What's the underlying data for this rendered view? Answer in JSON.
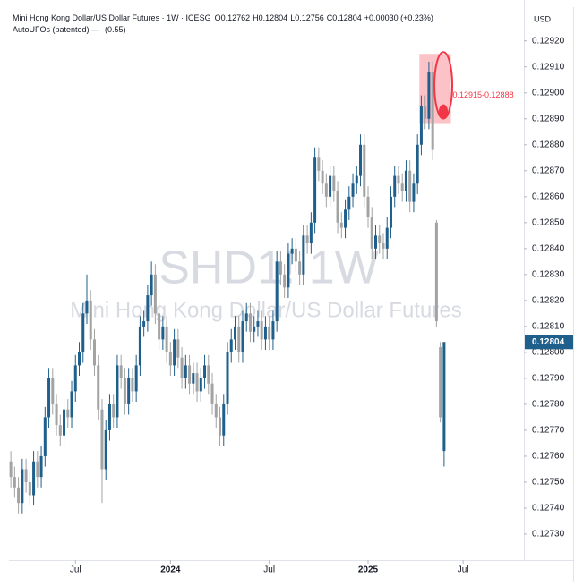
{
  "header": {
    "symbol": "Mini Hong Kong Dollar/US Dollar Futures · 1W · ICESG",
    "o_label": "O",
    "o": "0.12762",
    "h_label": "H",
    "h": "0.12804",
    "l_label": "L",
    "l": "0.12756",
    "c_label": "C",
    "c": "0.12804",
    "change": "+0.00030 (+0.23%)",
    "indicator": "AutoUFOs (patented) —",
    "indicator_value": "(0.55)"
  },
  "watermark": {
    "ticker": "SHD1! 1W",
    "name": "Mini Hong Kong Dollar/US Dollar Futures"
  },
  "chart_data": {
    "type": "candlestick",
    "currency": "USD",
    "up_color": "#1f5f8b",
    "down_color": "#a3a3a3",
    "ylim": [
      0.1272,
      0.12933
    ],
    "xlim": [
      -0.5,
      135
    ],
    "yticks": [
      {
        "value": 0.1292,
        "label": "0.12920"
      },
      {
        "value": 0.1291,
        "label": "0.12910"
      },
      {
        "value": 0.129,
        "label": "0.12900"
      },
      {
        "value": 0.1289,
        "label": "0.12890"
      },
      {
        "value": 0.1288,
        "label": "0.12880"
      },
      {
        "value": 0.1287,
        "label": "0.12870"
      },
      {
        "value": 0.1286,
        "label": "0.12860"
      },
      {
        "value": 0.1285,
        "label": "0.12850"
      },
      {
        "value": 0.1284,
        "label": "0.12840"
      },
      {
        "value": 0.1283,
        "label": "0.12830"
      },
      {
        "value": 0.1282,
        "label": "0.12820"
      },
      {
        "value": 0.1281,
        "label": "0.12810"
      },
      {
        "value": 0.128,
        "label": "0.12800"
      },
      {
        "value": 0.1279,
        "label": "0.12790"
      },
      {
        "value": 0.1278,
        "label": "0.12780"
      },
      {
        "value": 0.1277,
        "label": "0.12770"
      },
      {
        "value": 0.1276,
        "label": "0.12760"
      },
      {
        "value": 0.1275,
        "label": "0.12750"
      },
      {
        "value": 0.1274,
        "label": "0.12740"
      },
      {
        "value": 0.1273,
        "label": "0.12730"
      }
    ],
    "xticks": [
      {
        "value": 17,
        "label": "Jul"
      },
      {
        "value": 42,
        "label": "2024"
      },
      {
        "value": 68,
        "label": "Jul"
      },
      {
        "value": 94,
        "label": "2025"
      },
      {
        "value": 119,
        "label": "Jul"
      }
    ],
    "last_price": {
      "value": 0.12804,
      "label": "0.12804"
    },
    "zone": {
      "high": 0.12915,
      "low": 0.12888,
      "label": "0.12915-0.12888",
      "color": "#f23645"
    },
    "open": [
      0.12758,
      0.12752,
      0.12748,
      0.12742,
      0.12755,
      0.1275,
      0.12745,
      0.12758,
      0.12752,
      0.1276,
      0.12775,
      0.1279,
      0.1278,
      0.12772,
      0.12768,
      0.12778,
      0.12775,
      0.12785,
      0.12795,
      0.128,
      0.12815,
      0.1282,
      0.12805,
      0.12795,
      0.12778,
      0.12755,
      0.1277,
      0.1278,
      0.12775,
      0.12795,
      0.1279,
      0.1278,
      0.1279,
      0.12785,
      0.12795,
      0.1281,
      0.12812,
      0.12822,
      0.1283,
      0.12815,
      0.12805,
      0.1281,
      0.128,
      0.12795,
      0.12805,
      0.12798,
      0.1279,
      0.12795,
      0.12788,
      0.12792,
      0.12785,
      0.1279,
      0.12795,
      0.12788,
      0.1278,
      0.12775,
      0.12768,
      0.1278,
      0.128,
      0.12805,
      0.1281,
      0.128,
      0.12812,
      0.12815,
      0.12808,
      0.1281,
      0.12812,
      0.12805,
      0.1281,
      0.12805,
      0.12812,
      0.12835,
      0.1283,
      0.12825,
      0.12838,
      0.1284,
      0.12835,
      0.1283,
      0.12845,
      0.12842,
      0.1285,
      0.12875,
      0.1287,
      0.12865,
      0.1286,
      0.12868,
      0.12862,
      0.1285,
      0.12848,
      0.12855,
      0.1286,
      0.12865,
      0.12868,
      0.1288,
      0.1286,
      0.12852,
      0.1284,
      0.12845,
      0.12842,
      0.1284,
      0.12848,
      0.1286,
      0.12868,
      0.12865,
      0.12862,
      0.1287,
      0.12858,
      0.12865,
      0.1288,
      0.12895,
      0.1289,
      0.12908,
      0.1285,
      0.12802,
      0.12762
    ],
    "high": [
      0.12762,
      0.12756,
      0.12752,
      0.12759,
      0.12759,
      0.12754,
      0.12762,
      0.12762,
      0.12764,
      0.12779,
      0.12794,
      0.12794,
      0.12784,
      0.12776,
      0.12782,
      0.12782,
      0.12789,
      0.12799,
      0.12804,
      0.12819,
      0.1283,
      0.12824,
      0.12809,
      0.12799,
      0.12782,
      0.12774,
      0.12784,
      0.12784,
      0.12799,
      0.12799,
      0.12794,
      0.12794,
      0.12794,
      0.12799,
      0.12814,
      0.12816,
      0.12826,
      0.12835,
      0.12834,
      0.12819,
      0.12814,
      0.12814,
      0.12804,
      0.12809,
      0.12809,
      0.12802,
      0.12799,
      0.12799,
      0.12796,
      0.12796,
      0.12794,
      0.12799,
      0.12799,
      0.12792,
      0.12784,
      0.12779,
      0.12784,
      0.12804,
      0.12809,
      0.12814,
      0.12814,
      0.12816,
      0.12819,
      0.12819,
      0.12814,
      0.12816,
      0.12816,
      0.12814,
      0.12814,
      0.12816,
      0.12839,
      0.12839,
      0.12834,
      0.12842,
      0.12844,
      0.12844,
      0.12839,
      0.12849,
      0.12849,
      0.12854,
      0.12879,
      0.12879,
      0.12874,
      0.12869,
      0.12872,
      0.12872,
      0.12866,
      0.12854,
      0.12859,
      0.12864,
      0.12869,
      0.12872,
      0.12884,
      0.12884,
      0.12864,
      0.12856,
      0.12849,
      0.12849,
      0.12846,
      0.12852,
      0.12864,
      0.12872,
      0.12872,
      0.12869,
      0.12874,
      0.12874,
      0.12869,
      0.12884,
      0.12899,
      0.12899,
      0.12912,
      0.12912,
      0.12851,
      0.12804,
      0.12804
    ],
    "low": [
      0.12748,
      0.12744,
      0.12738,
      0.12738,
      0.12746,
      0.12741,
      0.12741,
      0.12748,
      0.12748,
      0.12756,
      0.12771,
      0.12776,
      0.12768,
      0.12764,
      0.12764,
      0.12771,
      0.12771,
      0.12781,
      0.12791,
      0.12796,
      0.12811,
      0.12801,
      0.12791,
      0.12774,
      0.12742,
      0.12751,
      0.12766,
      0.12771,
      0.12771,
      0.12786,
      0.12776,
      0.12776,
      0.12781,
      0.12781,
      0.12791,
      0.12806,
      0.12808,
      0.12818,
      0.12811,
      0.12801,
      0.12801,
      0.12796,
      0.12791,
      0.12791,
      0.12794,
      0.12786,
      0.12786,
      0.12784,
      0.12784,
      0.12781,
      0.12781,
      0.12786,
      0.12784,
      0.12776,
      0.12771,
      0.12764,
      0.12764,
      0.12776,
      0.12796,
      0.12801,
      0.12796,
      0.12796,
      0.12808,
      0.12804,
      0.12804,
      0.12806,
      0.12801,
      0.12801,
      0.12801,
      0.12801,
      0.12808,
      0.12826,
      0.12821,
      0.12821,
      0.12834,
      0.12831,
      0.12826,
      0.12826,
      0.12838,
      0.12838,
      0.12846,
      0.12866,
      0.12861,
      0.12856,
      0.12856,
      0.12858,
      0.12846,
      0.12844,
      0.12844,
      0.12851,
      0.12856,
      0.12861,
      0.12864,
      0.12856,
      0.12848,
      0.12836,
      0.12836,
      0.12838,
      0.12836,
      0.12836,
      0.12844,
      0.12856,
      0.12861,
      0.12858,
      0.12858,
      0.12854,
      0.12854,
      0.12861,
      0.12876,
      0.12886,
      0.12886,
      0.12874,
      0.1281,
      0.12773,
      0.12756
    ],
    "close": [
      0.12752,
      0.12748,
      0.12742,
      0.12755,
      0.1275,
      0.12745,
      0.12758,
      0.12752,
      0.1276,
      0.12775,
      0.1279,
      0.1278,
      0.12772,
      0.12768,
      0.12778,
      0.12775,
      0.12785,
      0.12795,
      0.128,
      0.12815,
      0.1282,
      0.12805,
      0.12795,
      0.12778,
      0.12755,
      0.1277,
      0.1278,
      0.12775,
      0.12795,
      0.1279,
      0.1278,
      0.1279,
      0.12785,
      0.12795,
      0.1281,
      0.12812,
      0.12822,
      0.1283,
      0.12815,
      0.12805,
      0.1281,
      0.128,
      0.12795,
      0.12805,
      0.12798,
      0.1279,
      0.12795,
      0.12788,
      0.12792,
      0.12785,
      0.1279,
      0.12795,
      0.12788,
      0.1278,
      0.12775,
      0.12768,
      0.1278,
      0.128,
      0.12805,
      0.1281,
      0.128,
      0.12812,
      0.12815,
      0.12808,
      0.1281,
      0.12812,
      0.12805,
      0.1281,
      0.12805,
      0.12812,
      0.12835,
      0.1283,
      0.12825,
      0.12838,
      0.1284,
      0.12835,
      0.1283,
      0.12845,
      0.12842,
      0.1285,
      0.12875,
      0.1287,
      0.12865,
      0.1286,
      0.12868,
      0.12862,
      0.1285,
      0.12848,
      0.12855,
      0.1286,
      0.12865,
      0.12868,
      0.1288,
      0.1286,
      0.12852,
      0.1284,
      0.12845,
      0.12842,
      0.1284,
      0.12848,
      0.1286,
      0.12868,
      0.12865,
      0.12862,
      0.1287,
      0.12858,
      0.12865,
      0.1288,
      0.12895,
      0.1289,
      0.12908,
      0.12878,
      0.12812,
      0.12775,
      0.12804
    ]
  }
}
